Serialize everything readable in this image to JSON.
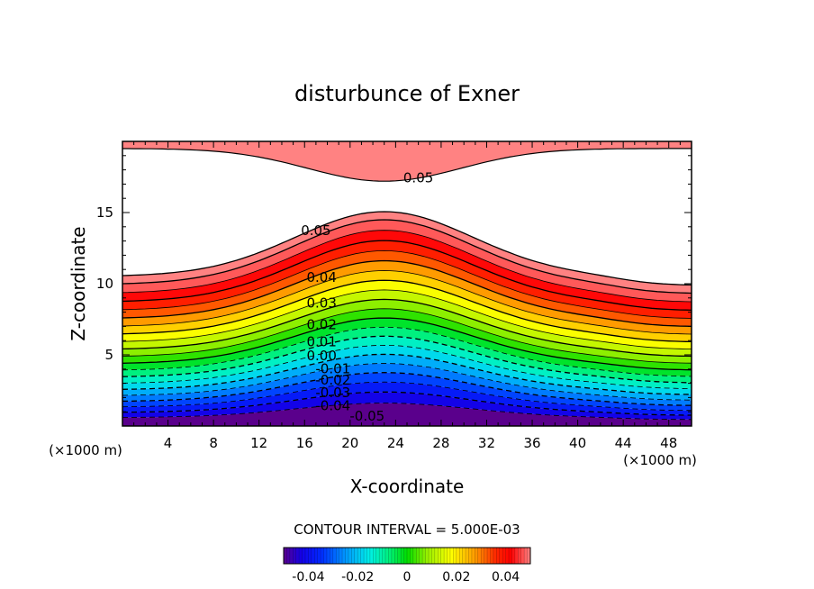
{
  "chart_data": {
    "type": "contour",
    "title": "disturbunce of Exner",
    "xlabel": "X-coordinate",
    "ylabel": "Z-coordinate",
    "x_unit": "(×1000 m)",
    "z_unit": "(×1000 m)",
    "xlim": [
      0,
      50
    ],
    "ylim": [
      0,
      20
    ],
    "x_ticks": [
      4,
      8,
      12,
      16,
      20,
      24,
      28,
      32,
      36,
      40,
      44,
      48
    ],
    "y_ticks": [
      5,
      10,
      15
    ],
    "contour_interval_text": "CONTOUR INTERVAL = 5.000E-03",
    "contour_interval": 0.005,
    "level_range": [
      -0.05,
      0.05
    ],
    "contour_labels": [
      {
        "text": "0.05",
        "x": 26,
        "z": 17.4
      },
      {
        "text": "0.05",
        "x": 17,
        "z": 13.7
      },
      {
        "text": "0.04",
        "x": 17.5,
        "z": 10.4
      },
      {
        "text": "0.03",
        "x": 17.5,
        "z": 8.6
      },
      {
        "text": "0.02",
        "x": 17.5,
        "z": 7.1
      },
      {
        "text": "0.01",
        "x": 17.5,
        "z": 5.9
      },
      {
        "text": "0.00",
        "x": 17.5,
        "z": 4.9
      },
      {
        "text": "-0.01",
        "x": 18.5,
        "z": 4.0
      },
      {
        "text": "-0.02",
        "x": 18.5,
        "z": 3.2
      },
      {
        "text": "-0.03",
        "x": 18.5,
        "z": 2.3
      },
      {
        "text": "-0.04",
        "x": 18.5,
        "z": 1.4
      },
      {
        "text": "-0.05",
        "x": 21.5,
        "z": 0.65
      }
    ],
    "colorbar": {
      "range": [
        -0.05,
        0.05
      ],
      "tick_labels": [
        "-0.04",
        "-0.02",
        "0",
        "0.02",
        "0.04"
      ],
      "tick_values": [
        -0.04,
        -0.02,
        0,
        0.02,
        0.04
      ]
    },
    "colors": {
      "positive_max": "#ff7f7f",
      "red": "#ff0000",
      "orange": "#ff9900",
      "yellow": "#ffff00",
      "green": "#00dd00",
      "cyan": "#00ffff",
      "blue": "#0000ff",
      "violet": "#6600aa"
    }
  }
}
